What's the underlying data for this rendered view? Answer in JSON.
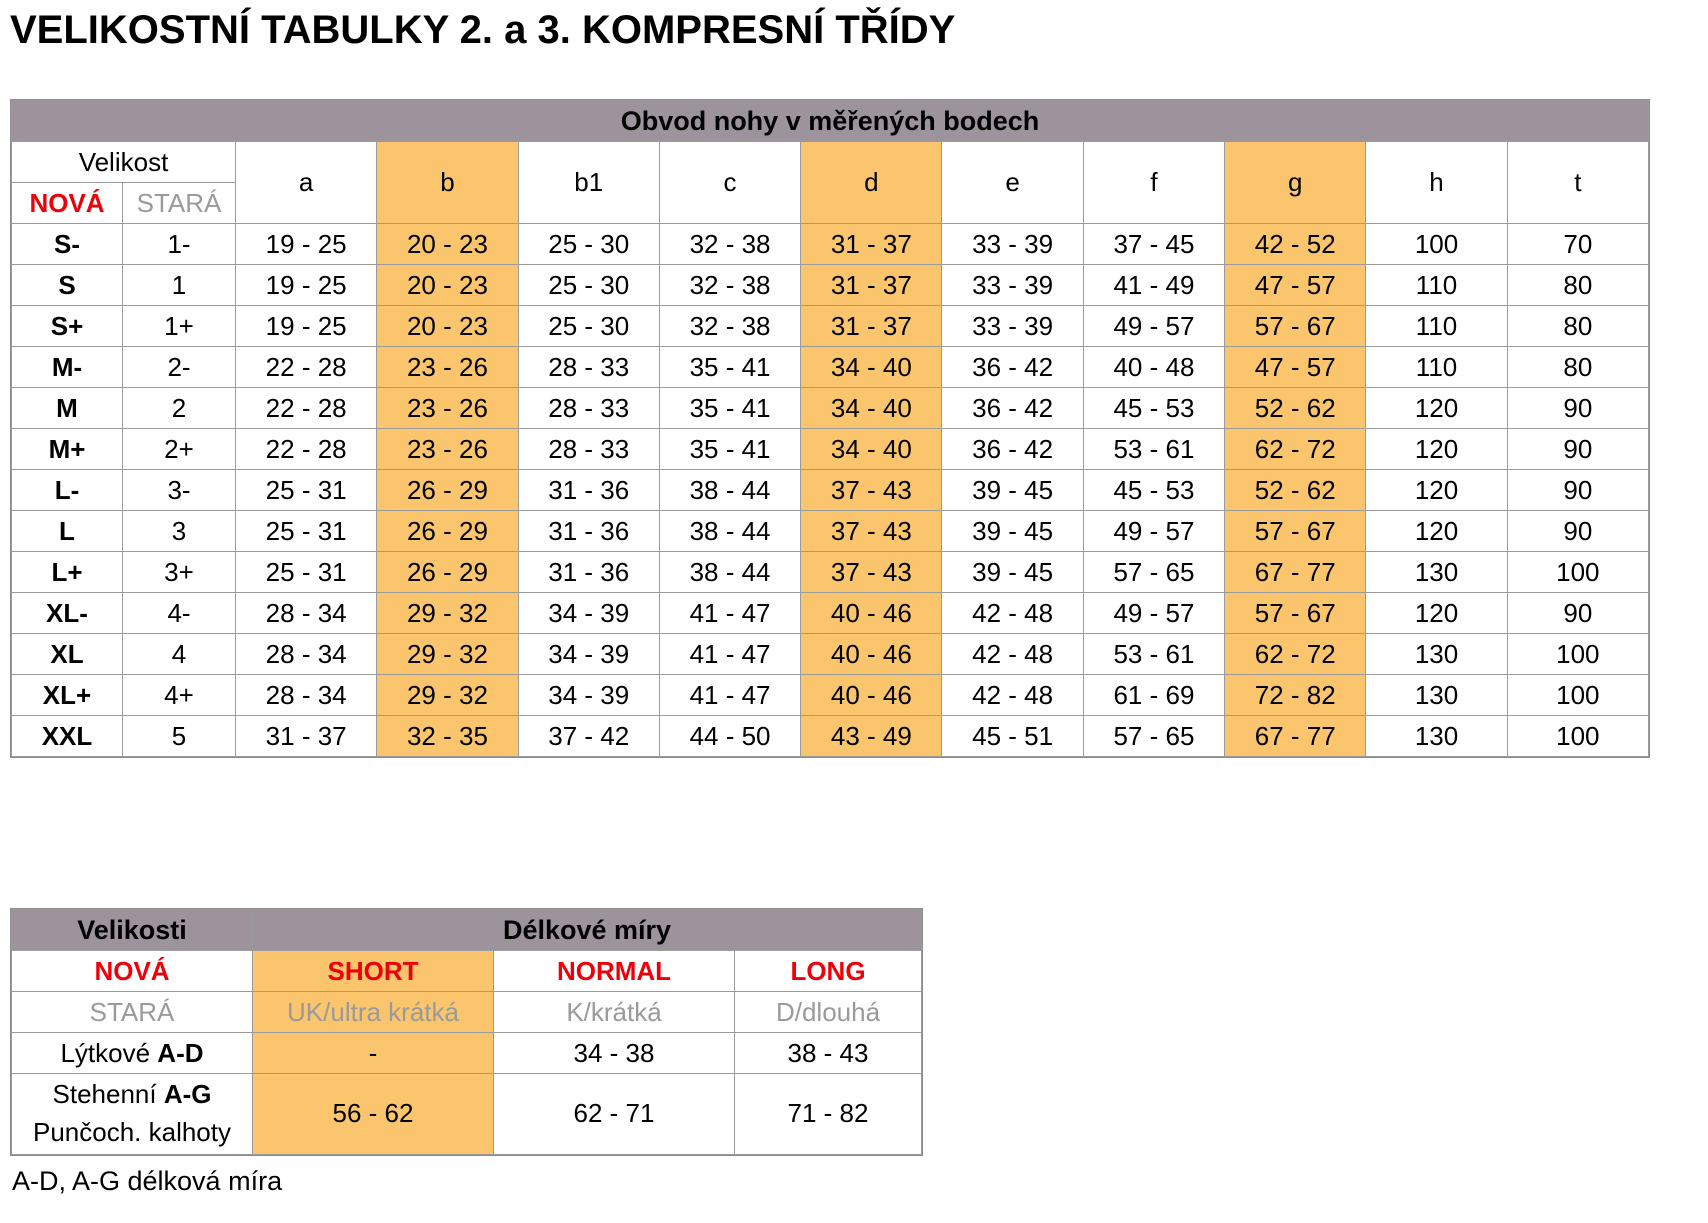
{
  "page": {
    "title": "VELIKOSTNÍ TABULKY 2. a 3. KOMPRESNÍ TŘÍDY",
    "footnote": "A-D, A-G délková míra"
  },
  "colors": {
    "header_bg": "#9d939d",
    "highlight_bg": "#fbc56d",
    "new_red": "#ee0008",
    "old_gray": "#9a9a9a",
    "grid": "#9b9b9b"
  },
  "size_table": {
    "title": "Obvod nohy v měřených bodech",
    "velikost_label": "Velikost",
    "nova_label": "NOVÁ",
    "stara_label": "STARÁ",
    "measure_columns": [
      "a",
      "b",
      "b1",
      "c",
      "d",
      "e",
      "f",
      "g",
      "h",
      "t"
    ],
    "highlighted_columns": [
      "b",
      "d",
      "g"
    ],
    "rows": [
      {
        "nova": "S-",
        "stara": "1-",
        "values": [
          "19 - 25",
          "20 - 23",
          "25 - 30",
          "32 - 38",
          "31 - 37",
          "33 - 39",
          "37 - 45",
          "42 - 52",
          "100",
          "70"
        ]
      },
      {
        "nova": "S",
        "stara": "1",
        "values": [
          "19 - 25",
          "20 - 23",
          "25 - 30",
          "32 - 38",
          "31 - 37",
          "33 - 39",
          "41 - 49",
          "47 - 57",
          "110",
          "80"
        ]
      },
      {
        "nova": "S+",
        "stara": "1+",
        "values": [
          "19 - 25",
          "20 - 23",
          "25 - 30",
          "32 - 38",
          "31 - 37",
          "33 - 39",
          "49 - 57",
          "57 - 67",
          "110",
          "80"
        ]
      },
      {
        "nova": "M-",
        "stara": "2-",
        "values": [
          "22 - 28",
          "23 - 26",
          "28 - 33",
          "35 - 41",
          "34 - 40",
          "36 - 42",
          "40 - 48",
          "47 - 57",
          "110",
          "80"
        ]
      },
      {
        "nova": "M",
        "stara": "2",
        "values": [
          "22 - 28",
          "23 - 26",
          "28 - 33",
          "35 - 41",
          "34 - 40",
          "36 - 42",
          "45 - 53",
          "52 - 62",
          "120",
          "90"
        ]
      },
      {
        "nova": "M+",
        "stara": "2+",
        "values": [
          "22 - 28",
          "23 - 26",
          "28 - 33",
          "35 - 41",
          "34 - 40",
          "36 - 42",
          "53 - 61",
          "62 - 72",
          "120",
          "90"
        ]
      },
      {
        "nova": "L-",
        "stara": "3-",
        "values": [
          "25 - 31",
          "26 - 29",
          "31 - 36",
          "38 - 44",
          "37 - 43",
          "39 - 45",
          "45 - 53",
          "52 - 62",
          "120",
          "90"
        ]
      },
      {
        "nova": "L",
        "stara": "3",
        "values": [
          "25 - 31",
          "26 - 29",
          "31 - 36",
          "38 - 44",
          "37 - 43",
          "39 - 45",
          "49 - 57",
          "57 - 67",
          "120",
          "90"
        ]
      },
      {
        "nova": "L+",
        "stara": "3+",
        "values": [
          "25 - 31",
          "26 - 29",
          "31 - 36",
          "38 - 44",
          "37 - 43",
          "39 - 45",
          "57 - 65",
          "67 - 77",
          "130",
          "100"
        ]
      },
      {
        "nova": "XL-",
        "stara": "4-",
        "values": [
          "28 - 34",
          "29 - 32",
          "34 - 39",
          "41 - 47",
          "40 - 46",
          "42 - 48",
          "49 - 57",
          "57 - 67",
          "120",
          "90"
        ]
      },
      {
        "nova": "XL",
        "stara": "4",
        "values": [
          "28 - 34",
          "29 - 32",
          "34 - 39",
          "41 - 47",
          "40 - 46",
          "42 - 48",
          "53 - 61",
          "62 - 72",
          "130",
          "100"
        ]
      },
      {
        "nova": "XL+",
        "stara": "4+",
        "values": [
          "28 - 34",
          "29 - 32",
          "34 - 39",
          "41 - 47",
          "40 - 46",
          "42 - 48",
          "61 - 69",
          "72 - 82",
          "130",
          "100"
        ]
      },
      {
        "nova": "XXL",
        "stara": "5",
        "values": [
          "31 - 37",
          "32 - 35",
          "37 - 42",
          "44 - 50",
          "43 - 49",
          "45 - 51",
          "57 - 65",
          "67 - 77",
          "130",
          "100"
        ]
      }
    ]
  },
  "length_table": {
    "velikosti_label": "Velikosti",
    "title": "Délkové míry",
    "nova_label": "NOVÁ",
    "stara_label": "STARÁ",
    "new_columns": [
      "SHORT",
      "NORMAL",
      "LONG"
    ],
    "old_columns": [
      "UK/ultra krátká",
      "K/krátká",
      "D/dlouhá"
    ],
    "highlighted_value_index": 0,
    "rows": [
      {
        "label_lines": [
          [
            {
              "text": "Lýtkové ",
              "bold": false
            },
            {
              "text": "A-D",
              "bold": true
            }
          ]
        ],
        "values": [
          "-",
          "34 - 38",
          "38 - 43"
        ],
        "tall": false
      },
      {
        "label_lines": [
          [
            {
              "text": "Stehenní ",
              "bold": false
            },
            {
              "text": "A-G",
              "bold": true
            }
          ],
          [
            {
              "text": "Punčoch. kalhoty",
              "bold": false
            }
          ]
        ],
        "values": [
          "56 - 62",
          "62 - 71",
          "71 - 82"
        ],
        "tall": true
      }
    ]
  }
}
